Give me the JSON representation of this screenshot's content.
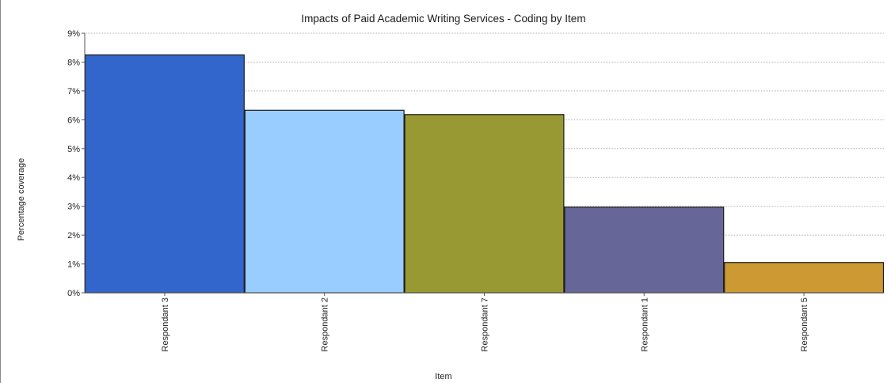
{
  "chart_data": {
    "type": "bar",
    "title": "Impacts of Paid Academic Writing Services - Coding by Item",
    "xlabel": "Item",
    "ylabel": "Percentage coverage",
    "ylim": [
      0,
      9
    ],
    "yticks": [
      "0%",
      "1%",
      "2%",
      "3%",
      "4%",
      "5%",
      "6%",
      "7%",
      "8%",
      "9%"
    ],
    "grid": true,
    "legend": "none",
    "categories": [
      "Respondant 3",
      "Respondant 2",
      "Respondant 7",
      "Respondant 1",
      "Respondant 5"
    ],
    "values": [
      8.25,
      6.33,
      6.18,
      2.97,
      1.05
    ],
    "colors": [
      "#3366cc",
      "#99ccff",
      "#999933",
      "#666699",
      "#cc9933"
    ]
  }
}
